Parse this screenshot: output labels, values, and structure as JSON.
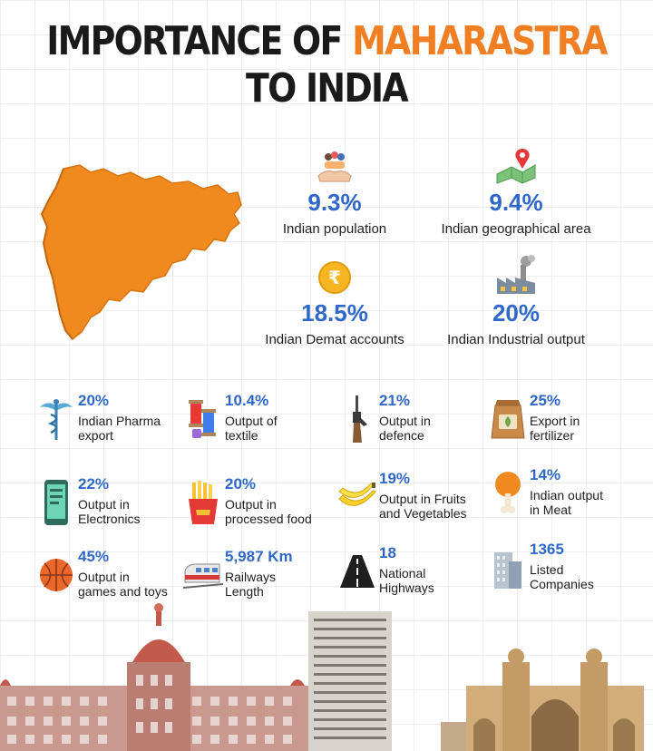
{
  "title": {
    "line1_prefix": "IMPORTANCE OF ",
    "line1_accent": "MAHARASTRA",
    "line2": "TO INDIA"
  },
  "colors": {
    "accent": "#ef7f22",
    "value_blue": "#2f68c9",
    "text": "#1e1e1e"
  },
  "headline_stats": [
    {
      "icon": "hands-people-icon",
      "value": "9.3%",
      "label": "Indian population"
    },
    {
      "icon": "map-pin-icon",
      "value": "9.4%",
      "label": "Indian geographical area"
    },
    {
      "icon": "rupee-coin-icon",
      "value": "18.5%",
      "label": "Indian Demat accounts"
    },
    {
      "icon": "factory-icon",
      "value": "20%",
      "label": "Indian Industrial output"
    }
  ],
  "stats": [
    {
      "icon": "caduceus-icon",
      "value": "20%",
      "label": "Indian Pharma\nexport"
    },
    {
      "icon": "thread-spools-icon",
      "value": "10.4%",
      "label": "Output of\ntextile"
    },
    {
      "icon": "rifle-icon",
      "value": "21%",
      "label": "Output in\ndefence"
    },
    {
      "icon": "fertilizer-bag-icon",
      "value": "25%",
      "label": "Export in\nfertilizer"
    },
    {
      "icon": "smartphone-icon",
      "value": "22%",
      "label": "Output in\nElectronics"
    },
    {
      "icon": "french-fries-icon",
      "value": "20%",
      "label": "Output in\nprocessed food"
    },
    {
      "icon": "banana-icon",
      "value": "19%",
      "label": "Output in Fruits\nand Vegetables"
    },
    {
      "icon": "chicken-leg-icon",
      "value": "14%",
      "label": "Indian output\nin Meat"
    },
    {
      "icon": "basketball-icon",
      "value": "45%",
      "label": "Output in\ngames and toys"
    },
    {
      "icon": "train-icon",
      "value": "5,987 Km",
      "label": "Railways\nLength"
    },
    {
      "icon": "highway-icon",
      "value": "18",
      "label": "National\nHighways"
    },
    {
      "icon": "skyscraper-icon",
      "value": "1365",
      "label": "Listed\nCompanies"
    }
  ]
}
